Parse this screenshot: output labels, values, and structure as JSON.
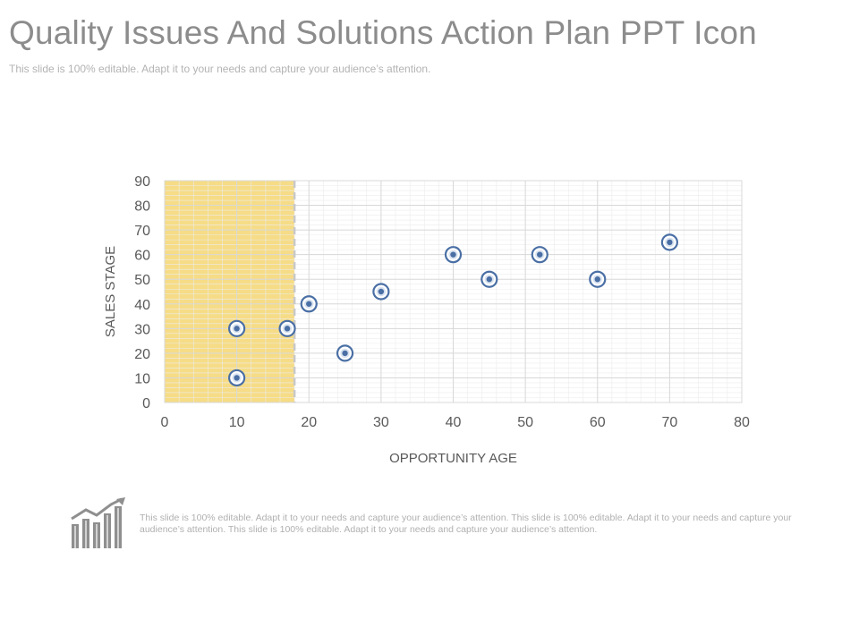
{
  "slide": {
    "title": "Quality Issues And Solutions Action Plan PPT Icon",
    "subtitle": "This slide is 100% editable. Adapt it to your needs and capture your audience’s attention.",
    "footer_text": "This slide is 100% editable. Adapt it to your needs and capture your audience’s attention. This slide is 100% editable. Adapt it to your needs and capture your audience’s attention. This slide is 100% editable. Adapt it to your needs and capture your audience’s attention.",
    "footer_icon": "bar-chart-growth-icon"
  },
  "chart_data": {
    "type": "scatter",
    "title": "",
    "xlabel": "OPPORTUNITY AGE",
    "ylabel": "SALES STAGE",
    "xlim": [
      0,
      80
    ],
    "ylim": [
      0,
      90
    ],
    "x_ticks": [
      "0",
      "10",
      "20",
      "30",
      "40",
      "50",
      "60",
      "70",
      "80"
    ],
    "y_ticks": [
      "0",
      "10",
      "20",
      "30",
      "40",
      "50",
      "60",
      "70",
      "80",
      "90"
    ],
    "grid": true,
    "highlight_region": {
      "x_from": 0,
      "x_to": 18
    },
    "colors": {
      "highlight": "#f6dc86",
      "marker_fill": "#4a6fa5",
      "marker_ring": "#d9e3f0",
      "grid": "#d8d8d8",
      "divider": "#c8c8c8",
      "text": "#595959"
    },
    "points": [
      {
        "x": 10,
        "y": 30
      },
      {
        "x": 10,
        "y": 10
      },
      {
        "x": 17,
        "y": 30
      },
      {
        "x": 20,
        "y": 40
      },
      {
        "x": 25,
        "y": 20
      },
      {
        "x": 30,
        "y": 45
      },
      {
        "x": 40,
        "y": 60
      },
      {
        "x": 45,
        "y": 50
      },
      {
        "x": 52,
        "y": 60
      },
      {
        "x": 60,
        "y": 50
      },
      {
        "x": 70,
        "y": 65
      }
    ]
  }
}
